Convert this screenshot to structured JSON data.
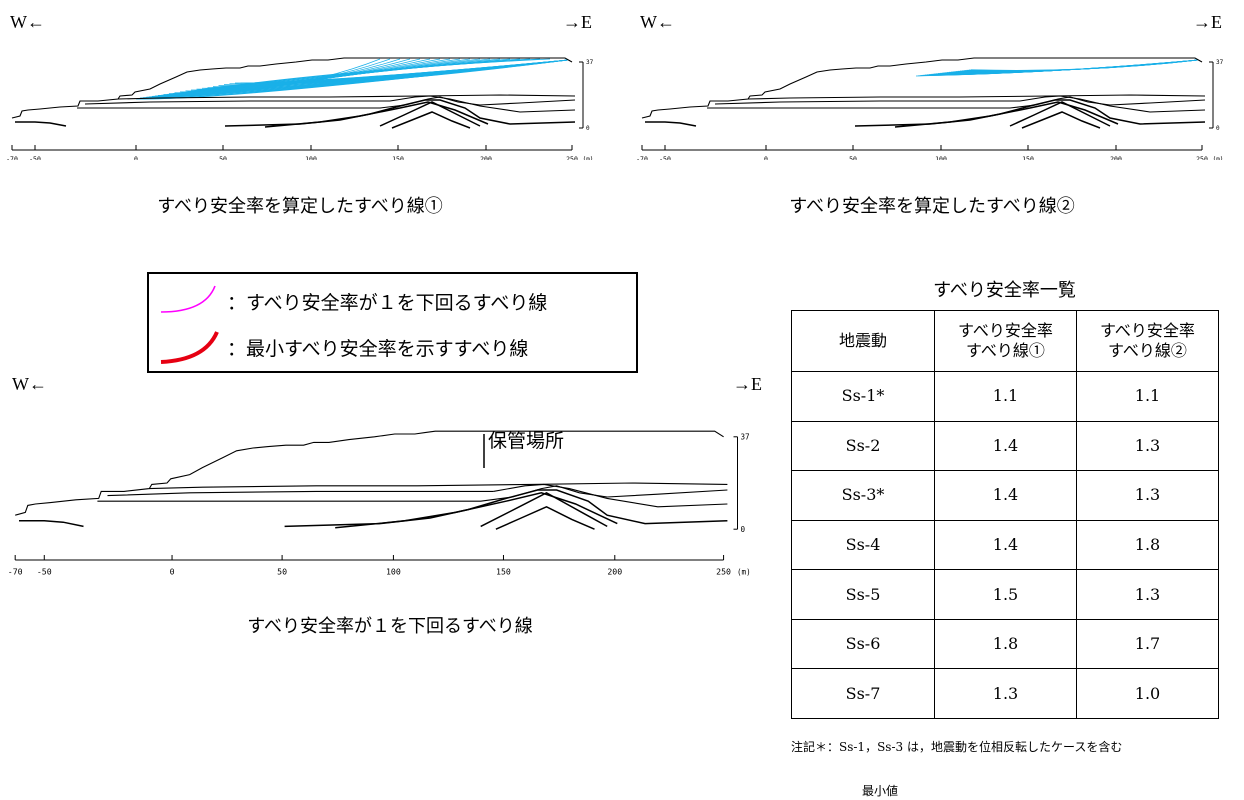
{
  "panel1": {
    "west": "W←",
    "east": "→E",
    "caption": "すべり安全率を算定したすべり線①",
    "x_ticks": [
      "-70",
      "-50",
      "0",
      "50",
      "100",
      "150",
      "200",
      "250"
    ],
    "unit": "(m)",
    "y_top": "37",
    "y_bottom": "0"
  },
  "panel2": {
    "west": "W←",
    "east": "→E",
    "caption": "すべり安全率を算定したすべり線②",
    "x_ticks": [
      "-70",
      "-50",
      "0",
      "50",
      "100",
      "150",
      "200",
      "250"
    ],
    "unit": "(m)",
    "y_top": "37",
    "y_bottom": "0"
  },
  "panel3": {
    "west": "W←",
    "east": "→E",
    "caption": "すべり安全率が１を下回るすべり線",
    "storage_label": "保管場所",
    "x_ticks": [
      "-70",
      "-50",
      "0",
      "50",
      "100",
      "150",
      "200",
      "250"
    ],
    "unit": "(m)",
    "y_top": "37",
    "y_bottom": "0"
  },
  "legend": {
    "item1": "：すべり安全率が１を下回るすべり線",
    "item2": "：最小すべり安全率を示すすべり線",
    "color1": "#ff00ff",
    "color2": "#e60012"
  },
  "table": {
    "title": "すべり安全率一覧",
    "headers": [
      "地震動",
      "すべり安全率\nすべり線①",
      "すべり安全率\nすべり線②"
    ],
    "rows": [
      [
        "Ss-1*",
        "1.1",
        "1.1"
      ],
      [
        "Ss-2",
        "1.4",
        "1.3"
      ],
      [
        "Ss-3*",
        "1.4",
        "1.3"
      ],
      [
        "Ss-4",
        "1.4",
        "1.8"
      ],
      [
        "Ss-5",
        "1.5",
        "1.3"
      ],
      [
        "Ss-6",
        "1.8",
        "1.7"
      ],
      [
        "Ss-7",
        "1.3",
        "1.0"
      ]
    ],
    "note": "注記＊：Ss-1，Ss-3 は，地震動を位相反転したケースを含む",
    "min_label": "最小値"
  },
  "colors": {
    "slip_lines": "#1ab0e8"
  }
}
